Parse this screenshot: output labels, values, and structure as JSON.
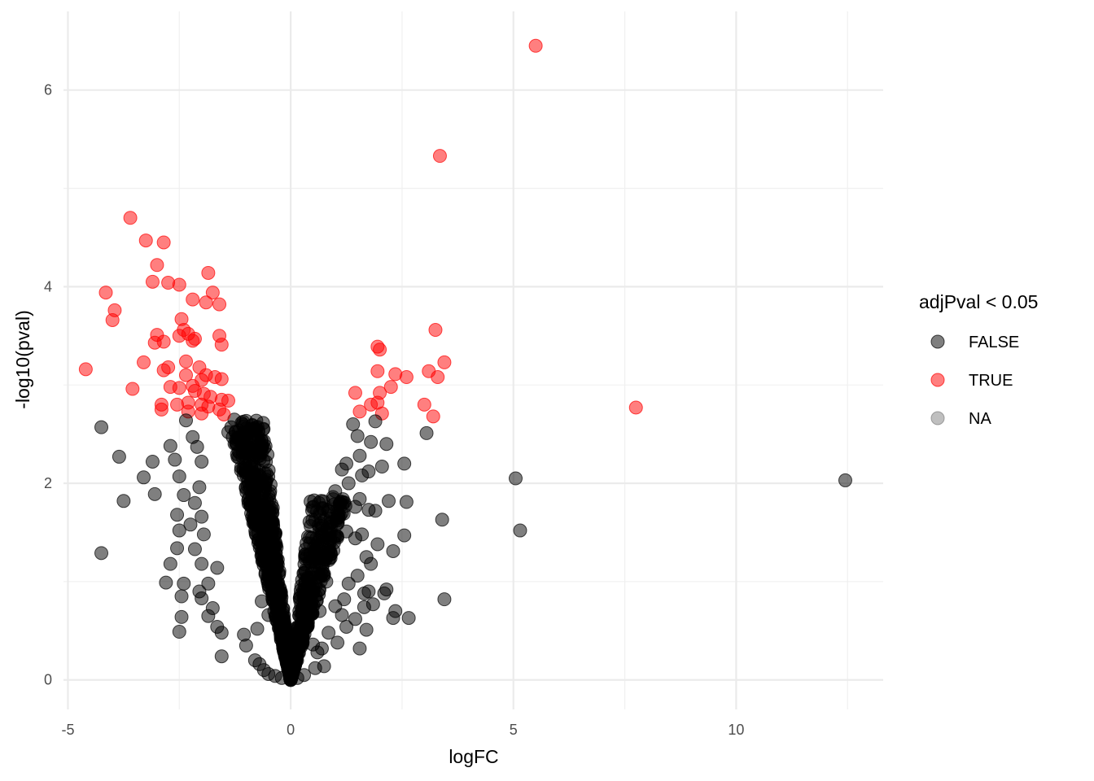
{
  "chart_data": {
    "type": "scatter",
    "xlabel": "logFC",
    "ylabel": "-log10(pval)",
    "xlim": [
      -5.1,
      13.3
    ],
    "ylim": [
      -0.3,
      6.8
    ],
    "x_ticks": [
      -5,
      0,
      5,
      10
    ],
    "y_ticks": [
      0,
      2,
      4,
      6
    ],
    "x_tick_labels": [
      "-5",
      "0",
      "5",
      "10"
    ],
    "y_tick_labels": [
      "0",
      "2",
      "4",
      "6"
    ],
    "grid": true,
    "legend": {
      "title": "adjPval < 0.05",
      "placement": "right",
      "entries": [
        {
          "label": "FALSE",
          "color": "#000000"
        },
        {
          "label": "TRUE",
          "color": "#ff0000"
        },
        {
          "label": "NA",
          "color": "#7f7f7f"
        }
      ]
    },
    "point_alpha": 0.5,
    "series": [
      {
        "name": "TRUE",
        "color": "#ff0000",
        "points": [
          [
            5.5,
            6.45
          ],
          [
            3.35,
            5.33
          ],
          [
            -3.6,
            4.7
          ],
          [
            -3.25,
            4.47
          ],
          [
            -2.85,
            4.45
          ],
          [
            -3.0,
            4.22
          ],
          [
            -1.85,
            4.14
          ],
          [
            -3.1,
            4.05
          ],
          [
            -2.75,
            4.04
          ],
          [
            -2.5,
            4.02
          ],
          [
            -4.15,
            3.94
          ],
          [
            -1.75,
            3.94
          ],
          [
            -2.2,
            3.87
          ],
          [
            -1.9,
            3.84
          ],
          [
            -1.6,
            3.82
          ],
          [
            -3.95,
            3.76
          ],
          [
            -4.0,
            3.66
          ],
          [
            -2.45,
            3.67
          ],
          [
            -2.4,
            3.56
          ],
          [
            -2.3,
            3.52
          ],
          [
            -2.5,
            3.5
          ],
          [
            -3.0,
            3.51
          ],
          [
            -1.6,
            3.5
          ],
          [
            -2.15,
            3.47
          ],
          [
            -2.2,
            3.45
          ],
          [
            -3.05,
            3.43
          ],
          [
            -2.85,
            3.44
          ],
          [
            -1.55,
            3.41
          ],
          [
            -2.35,
            3.24
          ],
          [
            -3.3,
            3.23
          ],
          [
            -2.75,
            3.18
          ],
          [
            -2.85,
            3.15
          ],
          [
            -2.05,
            3.18
          ],
          [
            -4.6,
            3.16
          ],
          [
            -2.35,
            3.1
          ],
          [
            -1.9,
            3.1
          ],
          [
            -1.7,
            3.08
          ],
          [
            -1.55,
            3.06
          ],
          [
            -2.0,
            3.05
          ],
          [
            -2.2,
            2.99
          ],
          [
            -2.7,
            2.98
          ],
          [
            -3.55,
            2.96
          ],
          [
            -2.5,
            2.97
          ],
          [
            -2.15,
            2.94
          ],
          [
            -1.95,
            2.91
          ],
          [
            -1.8,
            2.88
          ],
          [
            -1.55,
            2.85
          ],
          [
            -1.4,
            2.84
          ],
          [
            -2.9,
            2.8
          ],
          [
            -2.55,
            2.8
          ],
          [
            -2.3,
            2.82
          ],
          [
            -2.0,
            2.8
          ],
          [
            -1.85,
            2.78
          ],
          [
            -1.6,
            2.75
          ],
          [
            -2.9,
            2.75
          ],
          [
            -2.3,
            2.73
          ],
          [
            -2.0,
            2.71
          ],
          [
            -1.5,
            2.7
          ],
          [
            3.25,
            3.56
          ],
          [
            1.95,
            3.39
          ],
          [
            2.0,
            3.36
          ],
          [
            3.45,
            3.23
          ],
          [
            1.95,
            3.14
          ],
          [
            2.35,
            3.11
          ],
          [
            3.1,
            3.14
          ],
          [
            2.6,
            3.08
          ],
          [
            3.3,
            3.08
          ],
          [
            2.25,
            2.98
          ],
          [
            1.45,
            2.92
          ],
          [
            2.0,
            2.92
          ],
          [
            1.8,
            2.8
          ],
          [
            1.95,
            2.82
          ],
          [
            3.0,
            2.8
          ],
          [
            1.55,
            2.73
          ],
          [
            2.05,
            2.71
          ],
          [
            3.2,
            2.68
          ],
          [
            7.75,
            2.77
          ]
        ]
      },
      {
        "name": "FALSE",
        "color": "#000000",
        "points": [
          [
            12.45,
            2.03
          ],
          [
            5.05,
            2.05
          ],
          [
            5.15,
            1.52
          ],
          [
            3.4,
            1.63
          ],
          [
            3.45,
            0.82
          ],
          [
            2.65,
            0.63
          ],
          [
            2.3,
            0.63
          ],
          [
            2.35,
            0.7
          ],
          [
            3.05,
            2.51
          ],
          [
            2.55,
            2.2
          ],
          [
            2.15,
            2.4
          ],
          [
            2.05,
            2.17
          ],
          [
            2.2,
            1.82
          ],
          [
            2.6,
            1.81
          ],
          [
            1.9,
            1.72
          ],
          [
            2.55,
            1.47
          ],
          [
            2.3,
            1.31
          ],
          [
            1.95,
            1.38
          ],
          [
            2.15,
            0.92
          ],
          [
            2.1,
            0.88
          ],
          [
            1.85,
            0.77
          ],
          [
            1.75,
            0.9
          ],
          [
            1.65,
            0.74
          ],
          [
            1.7,
            0.51
          ],
          [
            1.55,
            0.32
          ],
          [
            1.9,
            2.63
          ],
          [
            1.4,
            2.6
          ],
          [
            1.5,
            2.48
          ],
          [
            1.8,
            2.42
          ],
          [
            1.55,
            2.28
          ],
          [
            1.25,
            2.2
          ],
          [
            1.15,
            2.14
          ],
          [
            1.75,
            2.12
          ],
          [
            1.6,
            2.08
          ],
          [
            1.3,
            2.0
          ],
          [
            1.0,
            1.92
          ],
          [
            0.95,
            1.86
          ],
          [
            1.55,
            1.84
          ],
          [
            1.45,
            1.76
          ],
          [
            1.75,
            1.73
          ],
          [
            1.15,
            1.7
          ],
          [
            1.05,
            1.62
          ],
          [
            0.9,
            1.56
          ],
          [
            1.25,
            1.51
          ],
          [
            1.6,
            1.48
          ],
          [
            1.45,
            1.44
          ],
          [
            1.8,
            1.18
          ],
          [
            1.7,
            1.25
          ],
          [
            1.5,
            1.06
          ],
          [
            1.3,
            0.98
          ],
          [
            1.65,
            0.88
          ],
          [
            1.2,
            0.82
          ],
          [
            1.0,
            0.75
          ],
          [
            1.15,
            0.66
          ],
          [
            1.45,
            0.62
          ],
          [
            1.25,
            0.54
          ],
          [
            0.85,
            0.48
          ],
          [
            1.05,
            0.38
          ],
          [
            0.7,
            0.32
          ],
          [
            0.6,
            0.28
          ],
          [
            0.75,
            0.14
          ],
          [
            0.55,
            0.12
          ],
          [
            0.5,
            0.36
          ],
          [
            0.65,
            0.7
          ],
          [
            0.8,
            1.0
          ],
          [
            0.55,
            1.2
          ],
          [
            0.7,
            1.38
          ],
          [
            0.9,
            1.28
          ],
          [
            0.45,
            0.9
          ],
          [
            -4.25,
            2.57
          ],
          [
            -3.85,
            2.27
          ],
          [
            -3.1,
            2.22
          ],
          [
            -3.3,
            2.06
          ],
          [
            -3.05,
            1.89
          ],
          [
            -3.75,
            1.82
          ],
          [
            -4.25,
            1.29
          ],
          [
            -2.8,
            0.99
          ],
          [
            -2.7,
            1.18
          ],
          [
            -2.4,
            0.98
          ],
          [
            -2.45,
            0.85
          ],
          [
            -2.45,
            0.64
          ],
          [
            -2.5,
            0.49
          ],
          [
            -2.55,
            1.34
          ],
          [
            -2.5,
            1.52
          ],
          [
            -2.55,
            1.68
          ],
          [
            -2.7,
            2.38
          ],
          [
            -2.6,
            2.24
          ],
          [
            -2.5,
            2.07
          ],
          [
            -2.4,
            1.88
          ],
          [
            -2.35,
            2.64
          ],
          [
            -2.2,
            2.47
          ],
          [
            -2.1,
            2.37
          ],
          [
            -2.0,
            2.22
          ],
          [
            -2.05,
            1.96
          ],
          [
            -2.15,
            1.8
          ],
          [
            -2.0,
            1.66
          ],
          [
            -2.25,
            1.58
          ],
          [
            -1.95,
            1.48
          ],
          [
            -2.15,
            1.33
          ],
          [
            -2.0,
            1.18
          ],
          [
            -2.05,
            0.9
          ],
          [
            -2.0,
            0.83
          ],
          [
            -1.85,
            0.65
          ],
          [
            -1.65,
            0.54
          ],
          [
            -1.55,
            0.48
          ],
          [
            -1.55,
            0.24
          ],
          [
            -1.75,
            0.73
          ],
          [
            -1.85,
            0.98
          ],
          [
            -1.65,
            1.14
          ],
          [
            -1.4,
            2.52
          ],
          [
            -1.3,
            2.47
          ],
          [
            -1.2,
            2.4
          ],
          [
            -1.0,
            2.42
          ],
          [
            -0.9,
            2.29
          ],
          [
            -0.9,
            2.1
          ],
          [
            -1.0,
            0.35
          ],
          [
            -0.8,
            0.2
          ],
          [
            -0.7,
            0.16
          ],
          [
            -0.6,
            0.1
          ],
          [
            -0.5,
            0.06
          ],
          [
            -0.35,
            0.04
          ],
          [
            -0.2,
            0.02
          ],
          [
            0.0,
            0.0
          ],
          [
            0.15,
            0.02
          ],
          [
            0.3,
            0.05
          ],
          [
            -1.05,
            0.46
          ],
          [
            -0.75,
            0.52
          ],
          [
            -0.65,
            0.8
          ],
          [
            -0.5,
            0.66
          ]
        ]
      }
    ],
    "dense_clusters": [
      {
        "series": "FALSE",
        "x_at_zero": 0.0,
        "x_min_at_top": -1.4,
        "x_max_at_top": -0.6,
        "y_top": 2.65,
        "count": 700
      },
      {
        "series": "FALSE",
        "x_at_zero": 0.0,
        "x_min_at_top": 0.45,
        "x_max_at_top": 1.35,
        "y_top": 1.85,
        "count": 380
      }
    ]
  }
}
